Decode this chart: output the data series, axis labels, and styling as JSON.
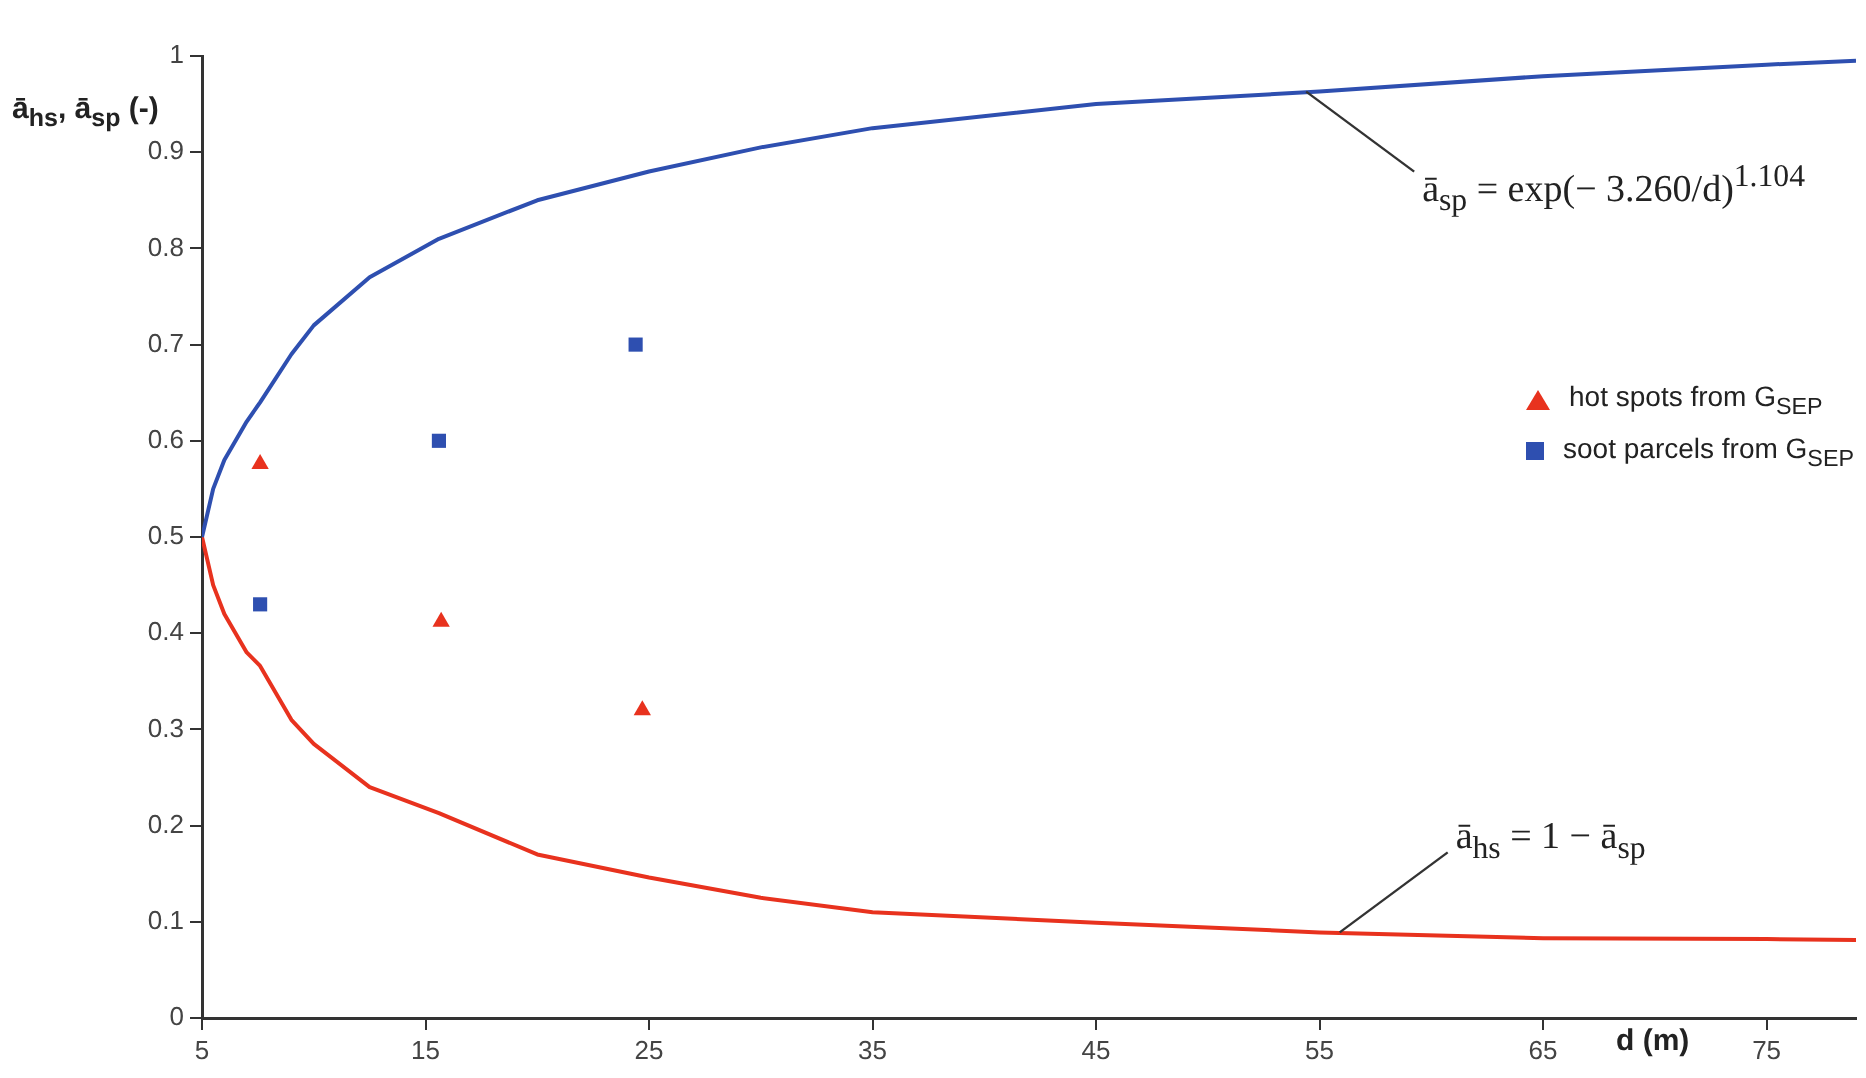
{
  "chart_data": {
    "type": "line",
    "xlabel": "d (m)",
    "ylabel": "ā$_{hs}$, ā$_{sp}$ (-)",
    "xlim": [
      5,
      79
    ],
    "xticks": [
      5,
      15,
      25,
      35,
      45,
      55,
      65,
      75
    ],
    "ylim": [
      0,
      1
    ],
    "yticks": [
      0,
      0.1,
      0.2,
      0.3,
      0.4,
      0.5,
      0.6,
      0.7,
      0.8,
      0.9,
      1
    ],
    "grid": false,
    "legend": "right",
    "series": [
      {
        "marker": "none",
        "color": "#2e4fb0",
        "x": [
          5,
          5.5,
          6,
          7,
          7.6,
          9,
          10,
          12.5,
          15.6,
          20,
          25,
          30,
          35,
          45,
          55,
          65,
          75,
          79
        ],
        "values": [
          0.5,
          0.55,
          0.58,
          0.62,
          0.64,
          0.69,
          0.72,
          0.77,
          0.81,
          0.85,
          0.88,
          0.905,
          0.925,
          0.95,
          0.963,
          0.979,
          0.991,
          0.995
        ]
      },
      {
        "marker": "none",
        "color": "#e8321e",
        "x": [
          5,
          5.5,
          6,
          7,
          7.6,
          9,
          10,
          12.5,
          15.6,
          20,
          25,
          30,
          35,
          45,
          55,
          65,
          75,
          79
        ],
        "values": [
          0.5,
          0.45,
          0.42,
          0.38,
          0.366,
          0.31,
          0.285,
          0.24,
          0.213,
          0.17,
          0.146,
          0.125,
          0.11,
          0.099,
          0.089,
          0.083,
          0.082,
          0.081
        ]
      },
      {
        "type": "scatter",
        "marker": "triangle",
        "name": "hot spots from G$_{SEP}$",
        "color": "#e8321e",
        "x": [
          7.6,
          15.7,
          24.7
        ],
        "values": [
          0.576,
          0.412,
          0.32
        ]
      },
      {
        "type": "scatter",
        "marker": "square",
        "name": "soot parcels from G$_{SEP}$",
        "color": "#2e4fb0",
        "x": [
          7.6,
          15.6,
          24.4
        ],
        "values": [
          0.43,
          0.6,
          0.7
        ]
      }
    ],
    "annotations": [
      {
        "text": "ā$_{sp}$ = exp(− 3.260/d)$^{1.104}$",
        "x": 54.4,
        "y": 0.963
      },
      {
        "text": "ā$_{hs}$ = 1 − ā$_{sp}$",
        "x": 55.9,
        "y": 0.089
      }
    ]
  }
}
